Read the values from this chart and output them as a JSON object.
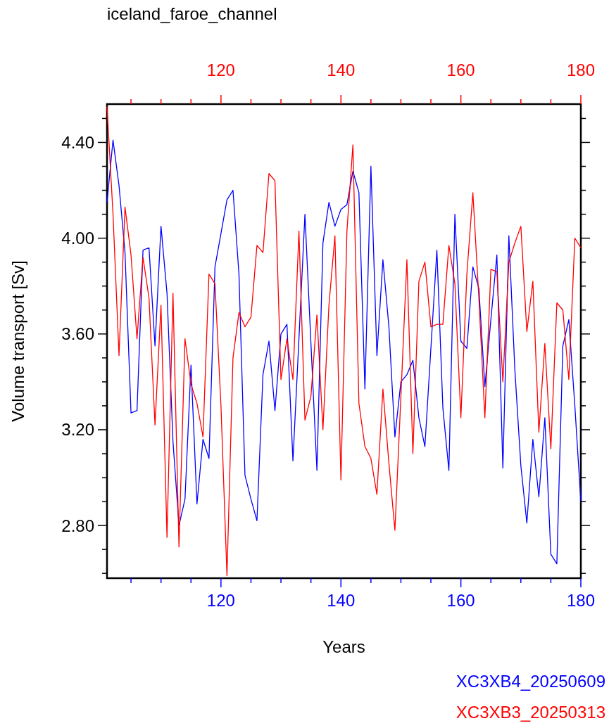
{
  "chart_data": {
    "type": "line",
    "title": "iceland_faroe_channel",
    "xlabel": "Years",
    "ylabel": "Volume transport [Sv]",
    "x": [
      101,
      102,
      103,
      104,
      105,
      106,
      107,
      108,
      109,
      110,
      111,
      112,
      113,
      114,
      115,
      116,
      117,
      118,
      119,
      120,
      121,
      122,
      123,
      124,
      125,
      126,
      127,
      128,
      129,
      130,
      131,
      132,
      133,
      134,
      135,
      136,
      137,
      138,
      139,
      140,
      141,
      142,
      143,
      144,
      145,
      146,
      147,
      148,
      149,
      150,
      151,
      152,
      153,
      154,
      155,
      156,
      157,
      158,
      159,
      160,
      161,
      162,
      163,
      164,
      165,
      166,
      167,
      168,
      169,
      170,
      171,
      172,
      173,
      174,
      175,
      176,
      177,
      178,
      179,
      180
    ],
    "series": [
      {
        "name": "XC3XB4_20250609",
        "color": "#0000ff",
        "values": [
          4.15,
          4.41,
          4.22,
          3.94,
          3.27,
          3.28,
          3.95,
          3.96,
          3.55,
          4.05,
          3.77,
          3.15,
          2.8,
          2.91,
          3.47,
          2.89,
          3.16,
          3.08,
          3.88,
          4.02,
          4.16,
          4.2,
          3.85,
          3.01,
          2.91,
          2.82,
          3.43,
          3.57,
          3.28,
          3.6,
          3.64,
          3.07,
          3.58,
          4.1,
          3.56,
          3.03,
          3.98,
          4.15,
          4.05,
          4.12,
          4.14,
          4.28,
          4.19,
          3.37,
          4.3,
          3.51,
          3.91,
          3.63,
          3.17,
          3.4,
          3.43,
          3.49,
          3.25,
          3.13,
          3.54,
          3.95,
          3.29,
          3.03,
          4.1,
          3.57,
          3.54,
          3.88,
          3.79,
          3.38,
          3.66,
          3.93,
          3.04,
          4.01,
          3.45,
          3.05,
          2.81,
          3.16,
          2.92,
          3.25,
          2.68,
          2.64,
          3.55,
          3.66,
          3.3,
          2.9
        ]
      },
      {
        "name": "XC3XB3_20250313",
        "color": "#ff0000",
        "axis": "x2",
        "values": [
          4.55,
          4.1,
          3.51,
          4.13,
          3.93,
          3.58,
          3.92,
          3.75,
          3.22,
          3.72,
          2.75,
          3.77,
          2.71,
          3.58,
          3.39,
          3.31,
          3.17,
          3.85,
          3.81,
          3.3,
          2.59,
          3.5,
          3.69,
          3.63,
          3.67,
          3.97,
          3.94,
          4.27,
          4.24,
          3.41,
          3.58,
          3.41,
          4.03,
          3.24,
          3.34,
          3.68,
          3.2,
          3.72,
          4.01,
          2.99,
          4.03,
          4.39,
          3.31,
          3.13,
          3.08,
          2.93,
          3.37,
          3.06,
          2.78,
          3.34,
          3.91,
          3.1,
          3.82,
          3.9,
          3.63,
          3.64,
          3.64,
          3.97,
          3.81,
          3.25,
          3.85,
          4.19,
          3.75,
          3.25,
          3.87,
          3.86,
          3.4,
          3.9,
          3.98,
          4.05,
          3.61,
          3.82,
          3.19,
          3.56,
          3.12,
          3.73,
          3.7,
          3.41,
          4.0,
          3.96
        ]
      }
    ],
    "xlim": [
      101,
      180
    ],
    "xticks": [
      {
        "value": 105,
        "label": null
      },
      {
        "value": 110,
        "label": null
      },
      {
        "value": 115,
        "label": null
      },
      120,
      {
        "value": 125,
        "label": null
      },
      {
        "value": 130,
        "label": null
      },
      {
        "value": 135,
        "label": null
      },
      140,
      {
        "value": 145,
        "label": null
      },
      {
        "value": 150,
        "label": null
      },
      {
        "value": 155,
        "label": null
      },
      160,
      {
        "value": 165,
        "label": null
      },
      {
        "value": 170,
        "label": null
      },
      {
        "value": 175,
        "label": null
      },
      180
    ],
    "x2lim": [
      101,
      180
    ],
    "x2ticks": [
      {
        "value": 105,
        "label": null
      },
      {
        "value": 110,
        "label": null
      },
      {
        "value": 115,
        "label": null
      },
      120,
      {
        "value": 125,
        "label": null
      },
      {
        "value": 130,
        "label": null
      },
      {
        "value": 135,
        "label": null
      },
      140,
      {
        "value": 145,
        "label": null
      },
      {
        "value": 150,
        "label": null
      },
      {
        "value": 155,
        "label": null
      },
      160,
      {
        "value": 165,
        "label": null
      },
      {
        "value": 170,
        "label": null
      },
      {
        "value": 175,
        "label": null
      },
      180
    ],
    "ylim": [
      2.58,
      4.56
    ],
    "yticks": [
      {
        "value": 2.6,
        "label": null
      },
      {
        "value": 2.7,
        "label": null
      },
      {
        "value": 2.8,
        "label": "2.80"
      },
      {
        "value": 2.9,
        "label": null
      },
      {
        "value": 3.0,
        "label": null
      },
      {
        "value": 3.1,
        "label": null
      },
      {
        "value": 3.2,
        "label": "3.20"
      },
      {
        "value": 3.3,
        "label": null
      },
      {
        "value": 3.4,
        "label": null
      },
      {
        "value": 3.5,
        "label": null
      },
      {
        "value": 3.6,
        "label": "3.60"
      },
      {
        "value": 3.7,
        "label": null
      },
      {
        "value": 3.8,
        "label": null
      },
      {
        "value": 3.9,
        "label": null
      },
      {
        "value": 4.0,
        "label": "4.00"
      },
      {
        "value": 4.1,
        "label": null
      },
      {
        "value": 4.2,
        "label": null
      },
      {
        "value": 4.3,
        "label": null
      },
      {
        "value": 4.4,
        "label": "4.40"
      },
      {
        "value": 4.5,
        "label": null
      }
    ],
    "legend": "bottom right",
    "line_style": "solid",
    "grid": false
  }
}
